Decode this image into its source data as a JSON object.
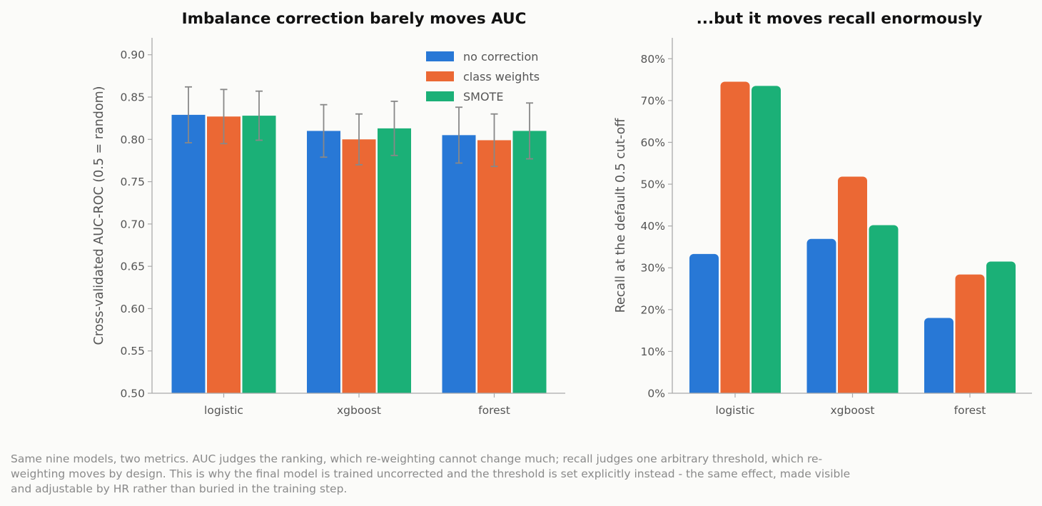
{
  "colors": {
    "no_correction": "#2878d6",
    "class_weights": "#eb6834",
    "smote": "#1bb077",
    "axis": "#aaaaaa",
    "errorbar": "#888888"
  },
  "chart_data": [
    {
      "type": "bar",
      "title": "Imbalance correction barely moves AUC",
      "xlabel": "",
      "ylabel": "Cross-validated AUC-ROC   (0.5 = random)",
      "categories": [
        "logistic",
        "xgboost",
        "forest"
      ],
      "ylim": [
        0.5,
        0.92
      ],
      "yticks": [
        0.5,
        0.55,
        0.6,
        0.65,
        0.7,
        0.75,
        0.8,
        0.85,
        0.9
      ],
      "ytick_labels": [
        "0.50",
        "0.55",
        "0.60",
        "0.65",
        "0.70",
        "0.75",
        "0.80",
        "0.85",
        "0.90"
      ],
      "legend": "top-right",
      "grid": false,
      "series": [
        {
          "name": "no correction",
          "color_key": "no_correction",
          "values": [
            0.829,
            0.81,
            0.805
          ],
          "err": [
            0.033,
            0.031,
            0.033
          ]
        },
        {
          "name": "class weights",
          "color_key": "class_weights",
          "values": [
            0.827,
            0.8,
            0.799
          ],
          "err": [
            0.032,
            0.03,
            0.031
          ]
        },
        {
          "name": "SMOTE",
          "color_key": "smote",
          "values": [
            0.828,
            0.813,
            0.81
          ],
          "err": [
            0.029,
            0.032,
            0.033
          ]
        }
      ]
    },
    {
      "type": "bar",
      "title": "...but it moves recall enormously",
      "xlabel": "",
      "ylabel": "Recall at the default 0.5 cut-off",
      "categories": [
        "logistic",
        "xgboost",
        "forest"
      ],
      "ylim": [
        0,
        0.85
      ],
      "yticks": [
        0,
        0.1,
        0.2,
        0.3,
        0.4,
        0.5,
        0.6,
        0.7,
        0.8
      ],
      "ytick_labels": [
        "0%",
        "10%",
        "20%",
        "30%",
        "40%",
        "50%",
        "60%",
        "70%",
        "80%"
      ],
      "grid": false,
      "series": [
        {
          "name": "no correction",
          "color_key": "no_correction",
          "values": [
            0.333,
            0.369,
            0.18
          ]
        },
        {
          "name": "class weights",
          "color_key": "class_weights",
          "values": [
            0.745,
            0.518,
            0.284
          ]
        },
        {
          "name": "SMOTE",
          "color_key": "smote",
          "values": [
            0.735,
            0.402,
            0.315
          ]
        }
      ]
    }
  ],
  "caption": "Same nine models, two metrics. AUC judges the ranking, which re-weighting cannot change much; recall judges one arbitrary threshold, which re-weighting moves by design. This is why the final model is trained uncorrected and the threshold is set explicitly instead - the same effect, made visible and adjustable by HR rather than buried in the training step."
}
